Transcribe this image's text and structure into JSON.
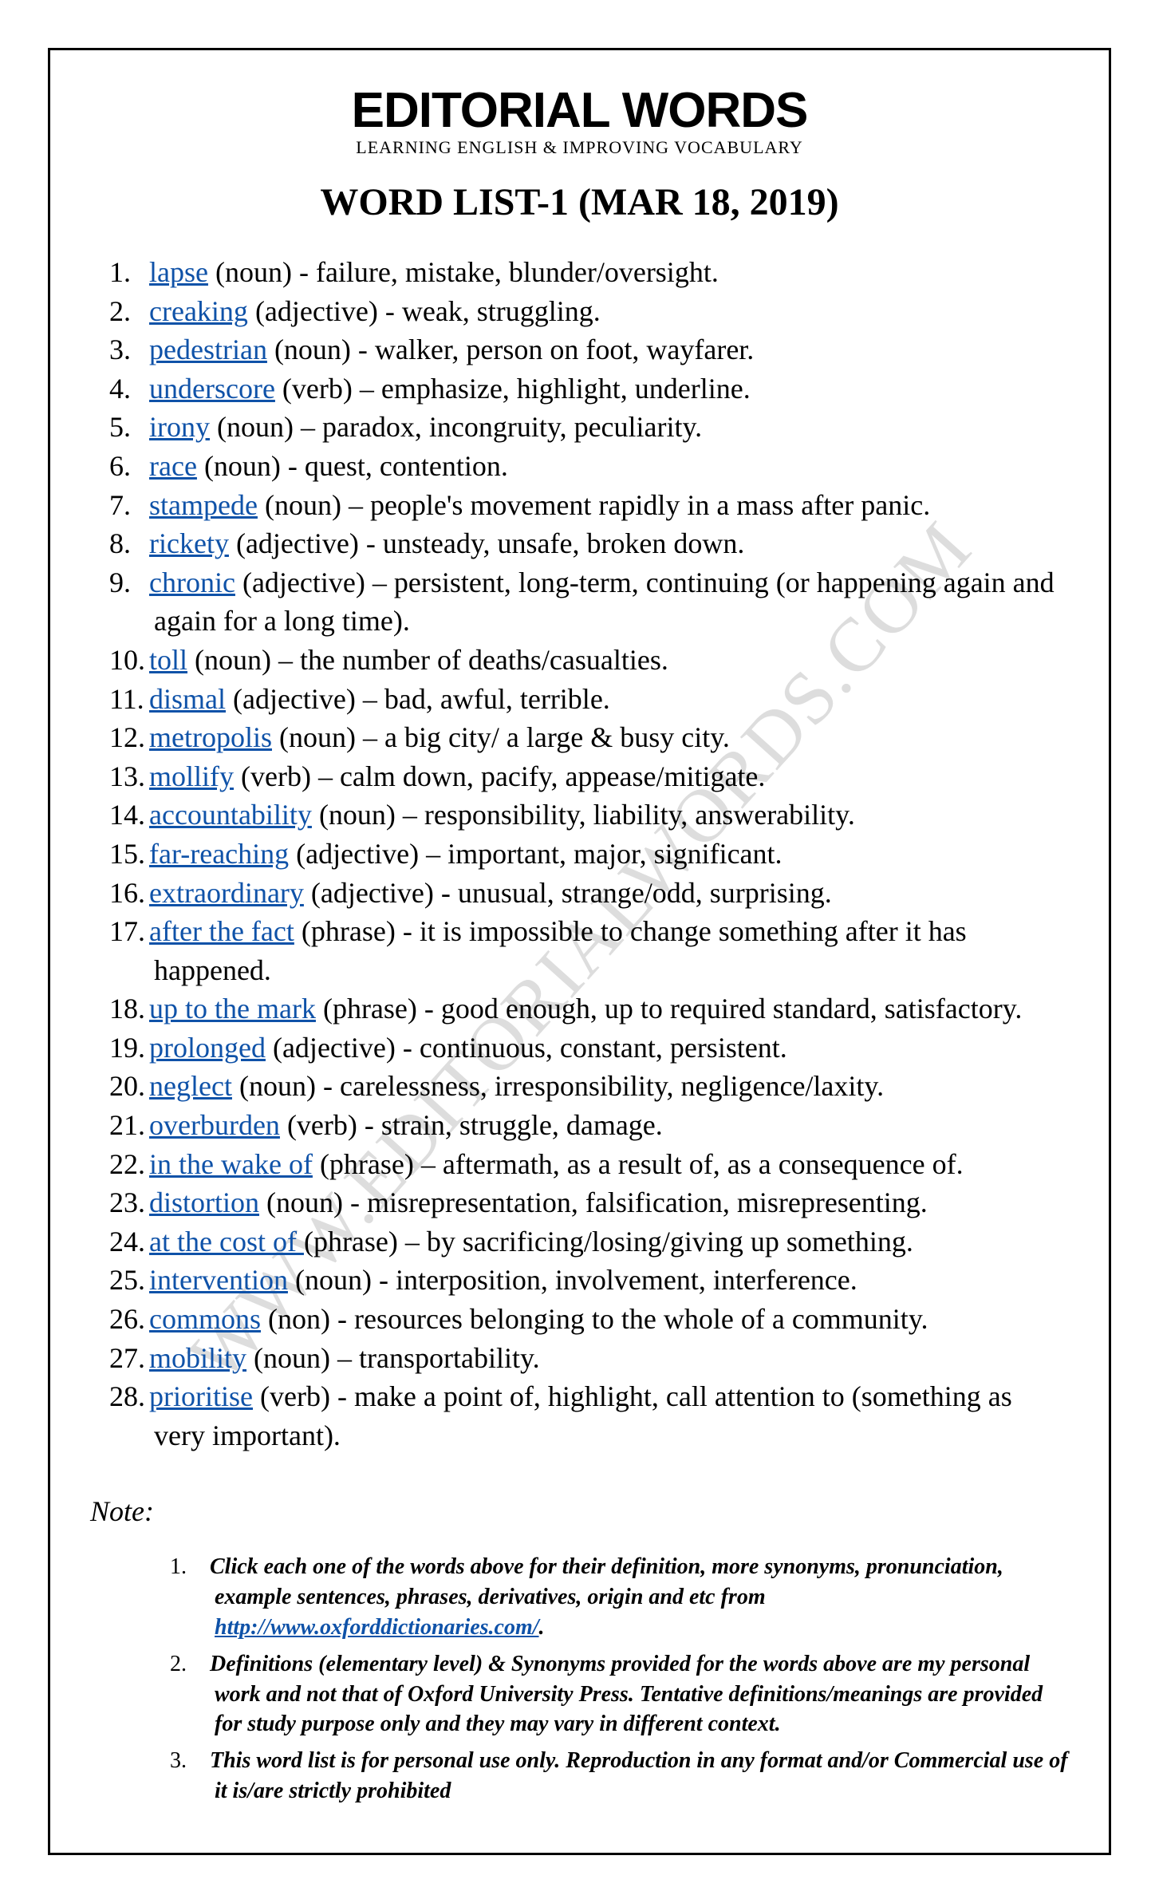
{
  "brand": "EDITORIAL WORDS",
  "tagline": "LEARNING ENGLISH & IMPROVING VOCABULARY",
  "list_title": "WORD LIST-1 (MAR 18, 2019)",
  "watermark": "WWW.EDITORIALWORDS.COM",
  "link_color": "#0f52a8",
  "text_color": "#000000",
  "background_color": "#ffffff",
  "border_color": "#000000",
  "font_sizes": {
    "brand": 62,
    "tagline": 22,
    "list_title": 48,
    "entry": 36,
    "note": 28
  },
  "words": [
    {
      "word": "lapse",
      "pos": "(noun)",
      "sep": " - ",
      "def": "failure, mistake, blunder/oversight."
    },
    {
      "word": "creaking",
      "pos": "(adjective)",
      "sep": " - ",
      "def": "weak, struggling."
    },
    {
      "word": "pedestrian",
      "pos": "(noun)",
      "sep": " - ",
      "def": "walker, person on foot, wayfarer."
    },
    {
      "word": "underscore",
      "pos": "(verb)",
      "sep": " – ",
      "def": "emphasize, highlight, underline."
    },
    {
      "word": "irony",
      "pos": "(noun)",
      "sep": " – ",
      "def": "paradox, incongruity, peculiarity."
    },
    {
      "word": "race",
      "pos": "(noun)",
      "sep": " - ",
      "def": "quest, contention."
    },
    {
      "word": "stampede",
      "pos": "(noun)",
      "sep": " – ",
      "def": "people's movement rapidly in a mass after panic."
    },
    {
      "word": "rickety",
      "pos": "(adjective)",
      "sep": " - ",
      "def": "unsteady, unsafe, broken down."
    },
    {
      "word": "chronic",
      "pos": "(adjective)",
      "sep": " – ",
      "def": "persistent, long-term, continuing (or happening again and again for a long time)."
    },
    {
      "word": "toll",
      "pos": "(noun)",
      "sep": " – ",
      "def": "the number of deaths/casualties."
    },
    {
      "word": "dismal",
      "pos": "(adjective)",
      "sep": " – ",
      "def": "bad, awful, terrible."
    },
    {
      "word": "metropolis",
      "pos": "(noun)",
      "sep": " – ",
      "def": "a big city/ a large & busy city."
    },
    {
      "word": "mollify",
      "pos": "(verb)",
      "sep": " – ",
      "def": "calm down, pacify, appease/mitigate."
    },
    {
      "word": "accountability",
      "pos": "(noun)",
      "sep": " – ",
      "def": "responsibility, liability, answerability."
    },
    {
      "word": "far-reaching",
      "pos": "(adjective)",
      "sep": " – ",
      "def": "important, major, significant."
    },
    {
      "word": "extraordinary",
      "pos": "(adjective)",
      "sep": " - ",
      "def": "unusual, strange/odd, surprising."
    },
    {
      "word": "after the fact",
      "pos": "(phrase)",
      "sep": " - ",
      "def": "it is impossible to change something after it has happened."
    },
    {
      "word": "up to the mark",
      "pos": "(phrase)",
      "sep": " - ",
      "def": "good enough, up to required standard, satisfactory."
    },
    {
      "word": "prolonged",
      "pos": "(adjective)",
      "sep": " - ",
      "def": "continuous, constant, persistent."
    },
    {
      "word": "neglect",
      "pos": "(noun)",
      "sep": " - ",
      "def": "carelessness, irresponsibility, negligence/laxity."
    },
    {
      "word": "overburden",
      "pos": "(verb)",
      "sep": " - ",
      "def": "strain, struggle, damage."
    },
    {
      "word": "in the wake of",
      "pos": "(phrase)",
      "sep": " – ",
      "def": "aftermath, as a result of, as a consequence of."
    },
    {
      "word": "distortion",
      "pos": "(noun)",
      "sep": " - ",
      "def": "misrepresentation, falsification, misrepresenting."
    },
    {
      "word": "at the cost of ",
      "pos": "(phrase)",
      "sep": " – ",
      "def": "by sacrificing/losing/giving up something."
    },
    {
      "word": "intervention",
      "pos": "(noun)",
      "sep": " - ",
      "def": "interposition, involvement, interference."
    },
    {
      "word": "commons",
      "pos": "(non)",
      "sep": " - ",
      "def": "resources belonging to the whole of a community."
    },
    {
      "word": "mobility",
      "pos": "(noun)",
      "sep": " – ",
      "def": "transportability."
    },
    {
      "word": "prioritise",
      "pos": "(verb)",
      "sep": " - ",
      "def": "make a point of, highlight, call attention to (something as very important)."
    }
  ],
  "note_heading": "Note:",
  "notes": [
    {
      "pre": "Click each one of the words above for their definition, more synonyms, pronunciation, example sentences, phrases, derivatives, origin and etc from ",
      "link": "http://www.oxforddictionaries.com/",
      "post": "."
    },
    {
      "pre": "Definitions (elementary level) & Synonyms provided for the words above are my personal work and not that of Oxford University Press. Tentative definitions/meanings are provided for study purpose only and they may vary in different context.",
      "link": "",
      "post": ""
    },
    {
      "pre": "This word list is for personal use only. Reproduction in any format and/or Commercial use of it is/are strictly prohibited",
      "link": "",
      "post": ""
    }
  ]
}
